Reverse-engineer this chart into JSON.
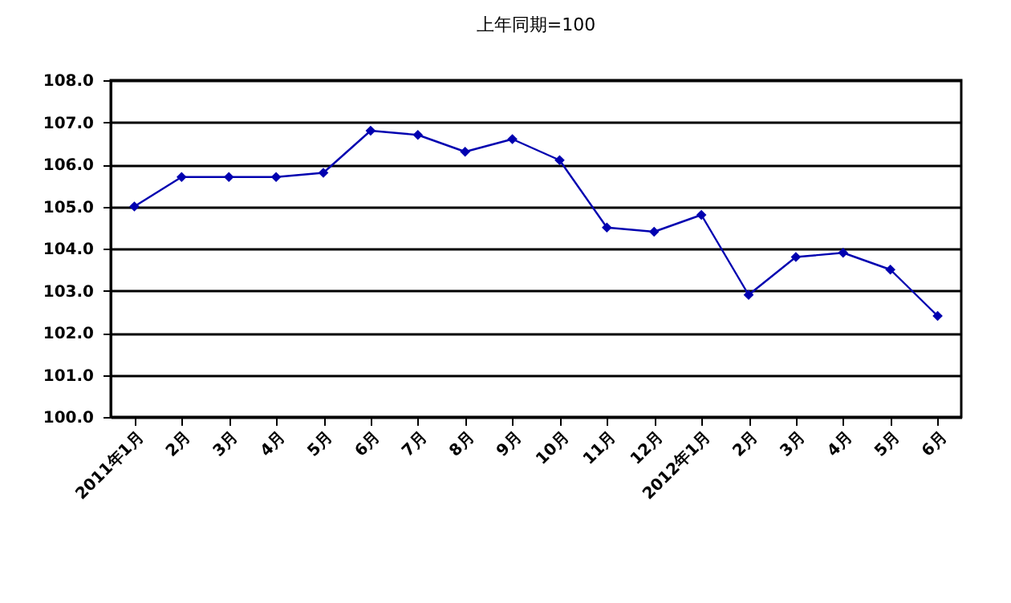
{
  "chart_data": {
    "type": "line",
    "title": "上年同期=100",
    "categories": [
      "2011年1月",
      "2月",
      "3月",
      "4月",
      "5月",
      "6月",
      "7月",
      "8月",
      "9月",
      "10月",
      "11月",
      "12月",
      "2012年1月",
      "2月",
      "3月",
      "4月",
      "5月",
      "6月"
    ],
    "series": [
      {
        "color": "#0000b0",
        "values": [
          105.0,
          105.7,
          105.7,
          105.7,
          105.8,
          106.8,
          106.7,
          106.3,
          106.6,
          106.1,
          104.5,
          104.4,
          104.8,
          102.9,
          103.8,
          103.9,
          103.5,
          102.4
        ]
      }
    ],
    "ylim": [
      100,
      108
    ],
    "yticks": [
      {
        "value": 100,
        "label": "100.0"
      },
      {
        "value": 101,
        "label": "101.0"
      },
      {
        "value": 102,
        "label": "102.0"
      },
      {
        "value": 103,
        "label": "103.0"
      },
      {
        "value": 104,
        "label": "104.0"
      },
      {
        "value": 105,
        "label": "105.0"
      },
      {
        "value": 106,
        "label": "106.0"
      },
      {
        "value": 107,
        "label": "107.0"
      },
      {
        "value": 108,
        "label": "108.0"
      }
    ],
    "grid": "y",
    "marker": "diamond",
    "line_style": "solid"
  }
}
